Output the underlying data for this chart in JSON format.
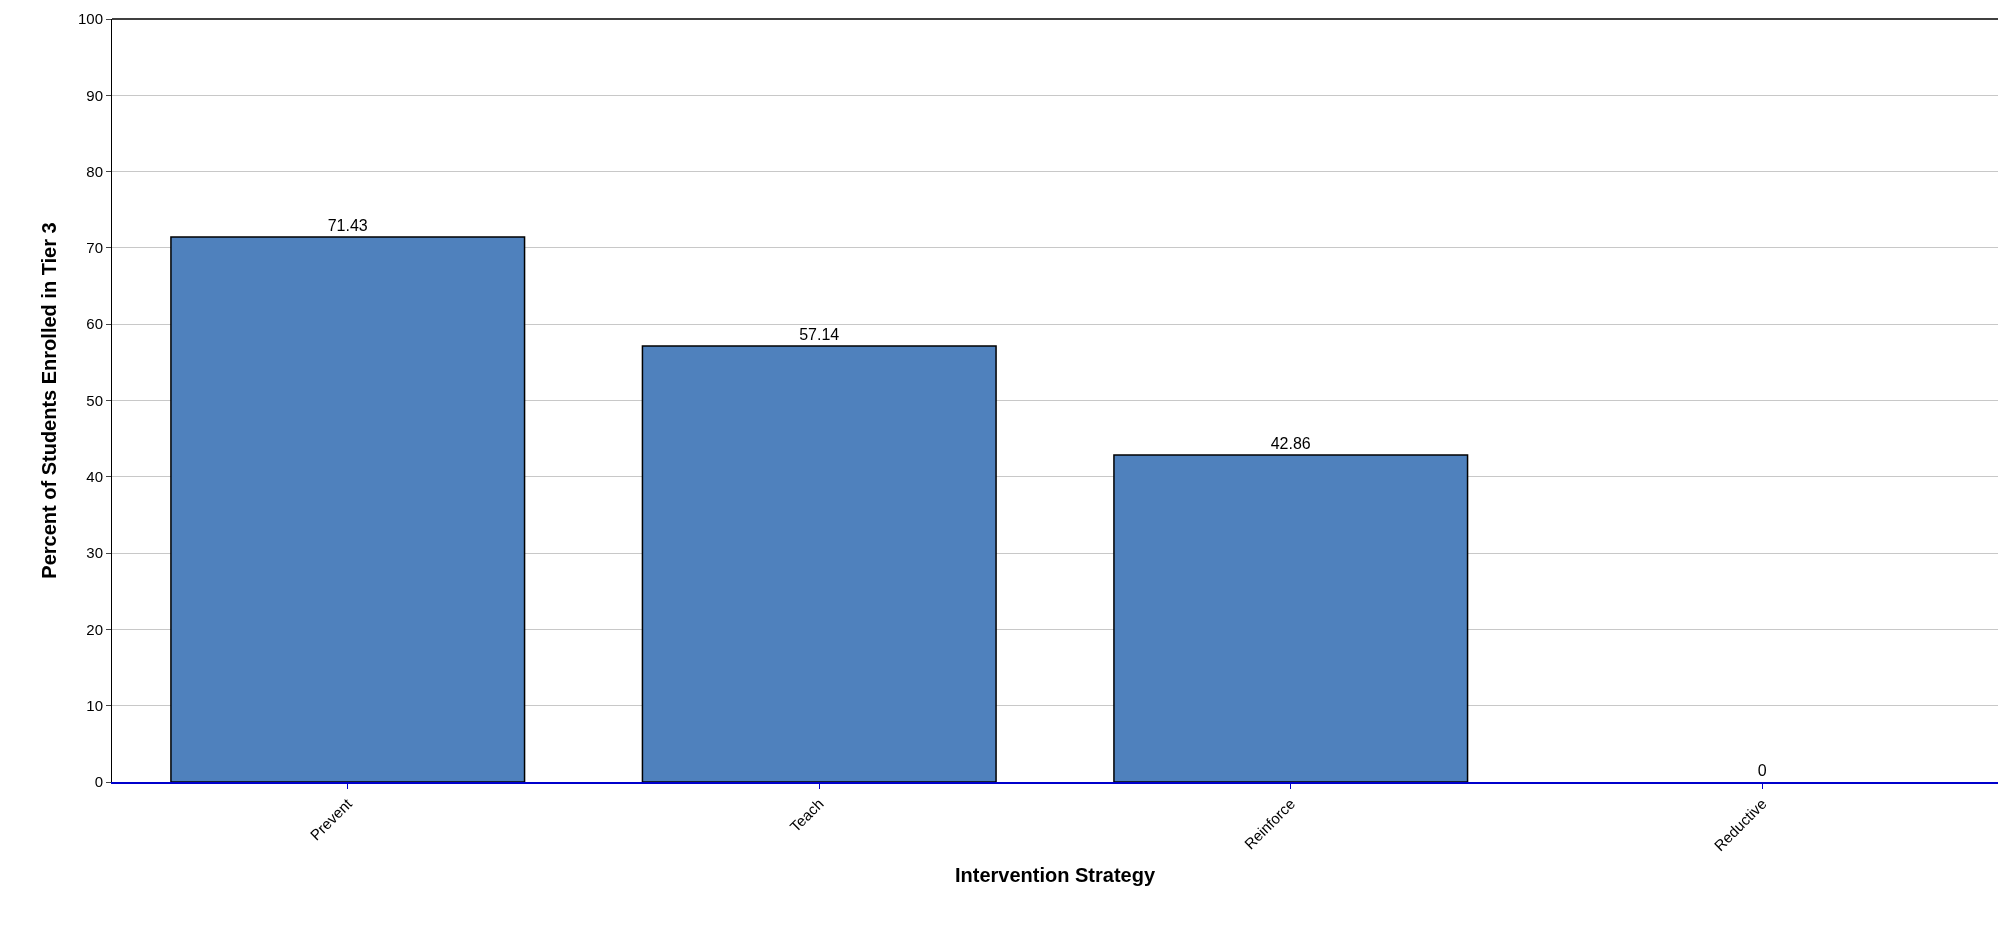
{
  "chart_data": {
    "type": "bar",
    "xlabel": "Intervention Strategy",
    "ylabel": "Percent of Students Enrolled in Tier 3",
    "categories": [
      "Prevent",
      "Teach",
      "Reinforce",
      "Reductive"
    ],
    "values": [
      71.43,
      57.14,
      42.86,
      0
    ],
    "color": "#4f81bd",
    "ylim": [
      0,
      100
    ],
    "yticks": [
      0,
      10,
      20,
      30,
      40,
      50,
      60,
      70,
      80,
      90,
      100
    ],
    "grid": "y",
    "data_labels": true
  }
}
